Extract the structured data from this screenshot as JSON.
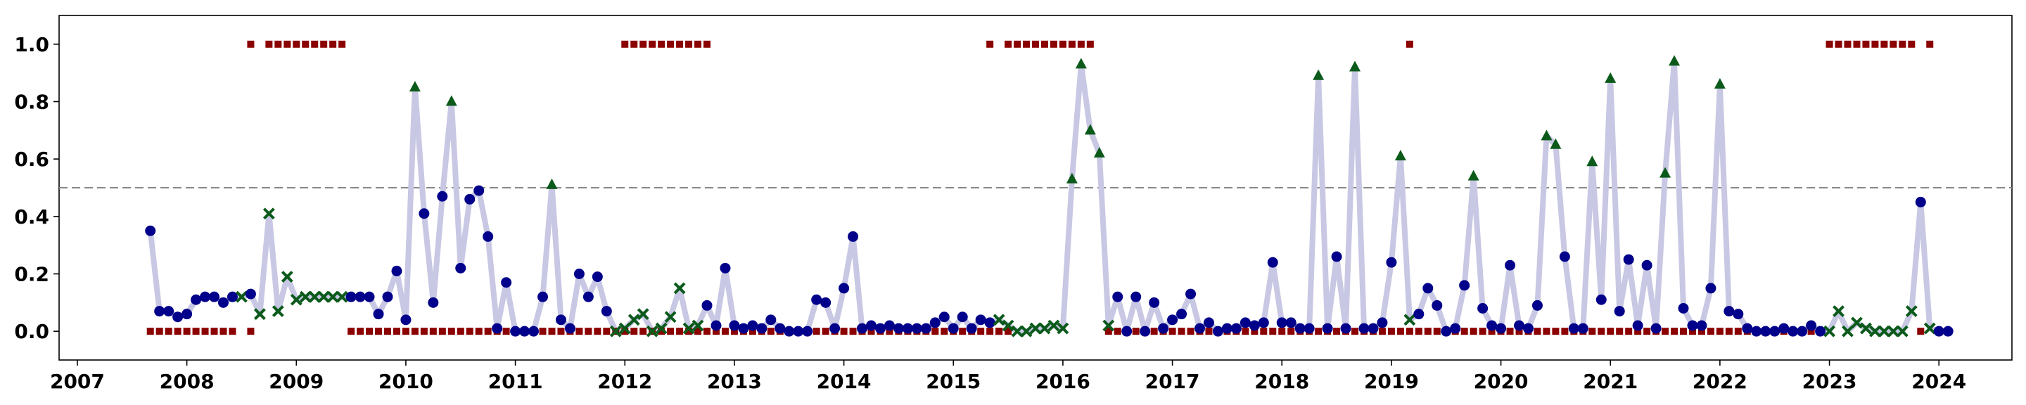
{
  "chart_data": {
    "type": "scatter",
    "title": "",
    "xlabel": "",
    "ylabel": "",
    "xlim": [
      "2006-11-01",
      "2024-09-01"
    ],
    "ylim": [
      -0.1,
      1.1
    ],
    "x_ticks": [
      "2007",
      "2008",
      "2009",
      "2010",
      "2011",
      "2012",
      "2013",
      "2014",
      "2015",
      "2016",
      "2017",
      "2018",
      "2019",
      "2020",
      "2021",
      "2022",
      "2023",
      "2024"
    ],
    "y_ticks": [
      "0.0",
      "0.2",
      "0.4",
      "0.6",
      "0.8",
      "1.0"
    ],
    "grid": false,
    "legend": "none",
    "threshold": 0.5,
    "colors": {
      "line": "#c8c8e4",
      "point": "#00008b",
      "above_threshold": "#0b5a1a",
      "cross": "#0b5a1a",
      "flag": "#8b0000",
      "threshold": "#888888"
    },
    "series": [
      {
        "start": "2007-09",
        "marker": "circle",
        "values": [
          0.35,
          0.07,
          0.07,
          0.05,
          0.06,
          0.11,
          0.12,
          0.12,
          0.1,
          0.12
        ]
      },
      {
        "start": "2008-07",
        "marker": "cross",
        "values": [
          0.12
        ]
      },
      {
        "start": "2008-08",
        "marker": "circle",
        "values": [
          0.13
        ]
      },
      {
        "start": "2008-09",
        "marker": "cross",
        "values": [
          0.06,
          0.41,
          0.07,
          0.19,
          0.11,
          0.12,
          0.12,
          0.12,
          0.12,
          0.12
        ]
      },
      {
        "start": "2009-07",
        "marker": "circle",
        "values": [
          0.12,
          0.12,
          0.12,
          0.06,
          0.12,
          0.21,
          0.04,
          0.85,
          0.41,
          0.1,
          0.47,
          0.8,
          0.22,
          0.46,
          0.49,
          0.33,
          0.01,
          0.17,
          0.0,
          0.0,
          0.0,
          0.12,
          0.51,
          0.04,
          0.01,
          0.2,
          0.12,
          0.19,
          0.07
        ]
      },
      {
        "start": "2011-12",
        "marker": "cross",
        "values": [
          0.0,
          0.01,
          0.04,
          0.06,
          0.0,
          0.01,
          0.05,
          0.15,
          0.01,
          0.02
        ]
      },
      {
        "start": "2012-10",
        "marker": "circle",
        "values": [
          0.09,
          0.02,
          0.22,
          0.02,
          0.01,
          0.02,
          0.01,
          0.04,
          0.01,
          0.0,
          0.0,
          0.0,
          0.11,
          0.1,
          0.01,
          0.15,
          0.33,
          0.01,
          0.02,
          0.01,
          0.02,
          0.01,
          0.01,
          0.01,
          0.01,
          0.03,
          0.05,
          0.01,
          0.05,
          0.01,
          0.04,
          0.03
        ]
      },
      {
        "start": "2015-06",
        "marker": "cross",
        "values": [
          0.04,
          0.02,
          0.0,
          0.0,
          0.01,
          0.01,
          0.02,
          0.01
        ]
      },
      {
        "start": "2016-02",
        "marker": "circle",
        "values": [
          0.53,
          0.93,
          0.7,
          0.62
        ]
      },
      {
        "start": "2016-06",
        "marker": "cross",
        "values": [
          0.02
        ]
      },
      {
        "start": "2016-07",
        "marker": "circle",
        "values": [
          0.12,
          0.0,
          0.12,
          0.0,
          0.1,
          0.01,
          0.04,
          0.06,
          0.13,
          0.01,
          0.03,
          0.0,
          0.01,
          0.01,
          0.03,
          0.02,
          0.03,
          0.24,
          0.03,
          0.03,
          0.01,
          0.01,
          0.89,
          0.01,
          0.26,
          0.01,
          0.92,
          0.01,
          0.01,
          0.03,
          0.24,
          0.61
        ]
      },
      {
        "start": "2019-03",
        "marker": "cross",
        "values": [
          0.04
        ]
      },
      {
        "start": "2019-04",
        "marker": "circle",
        "values": [
          0.06,
          0.15,
          0.09,
          0.0,
          0.01,
          0.16,
          0.54,
          0.08,
          0.02,
          0.01,
          0.23,
          0.02,
          0.01,
          0.09,
          0.68,
          0.65,
          0.26,
          0.01,
          0.01,
          0.59,
          0.11,
          0.88,
          0.07,
          0.25,
          0.02,
          0.23,
          0.01,
          0.55,
          0.94,
          0.08,
          0.02,
          0.02,
          0.15,
          0.86,
          0.07,
          0.06,
          0.01,
          0.0,
          0.0,
          0.0,
          0.01,
          0.0,
          0.0,
          0.02,
          0.0
        ]
      },
      {
        "start": "2023-01",
        "marker": "cross",
        "values": [
          0.0,
          0.07,
          0.0,
          0.03,
          0.01,
          0.0,
          0.0,
          0.0,
          0.0,
          0.07
        ]
      },
      {
        "start": "2023-11",
        "marker": "circle",
        "values": [
          0.45
        ]
      },
      {
        "start": "2023-12",
        "marker": "cross",
        "values": [
          0.01
        ]
      },
      {
        "start": "2024-01",
        "marker": "circle",
        "values": [
          0.0,
          0.0
        ]
      }
    ],
    "flags": [
      {
        "y": 1,
        "start": "2008-08",
        "count": 1
      },
      {
        "start": "2008-10",
        "count": 9,
        "y": 1
      },
      {
        "start": "2012-01",
        "count": 10,
        "y": 1
      },
      {
        "start": "2015-05",
        "count": 1,
        "y": 1
      },
      {
        "start": "2015-07",
        "count": 10,
        "y": 1
      },
      {
        "start": "2019-03",
        "count": 1,
        "y": 1
      },
      {
        "start": "2023-01",
        "count": 10,
        "y": 1
      },
      {
        "start": "2023-12",
        "count": 1,
        "y": 1
      },
      {
        "start": "2007-09",
        "count": 10,
        "y": 0
      },
      {
        "start": "2008-08",
        "count": 1,
        "y": 0
      },
      {
        "start": "2009-07",
        "count": 40,
        "y": 0
      },
      {
        "start": "2012-11",
        "count": 33,
        "y": 0
      },
      {
        "start": "2015-06",
        "count": 1,
        "y": 0
      },
      {
        "start": "2016-06",
        "count": 1,
        "y": 0
      },
      {
        "start": "2016-07",
        "count": 32,
        "y": 0
      },
      {
        "start": "2019-03",
        "count": 46,
        "y": 0
      },
      {
        "start": "2023-11",
        "count": 1,
        "y": 0
      }
    ]
  }
}
